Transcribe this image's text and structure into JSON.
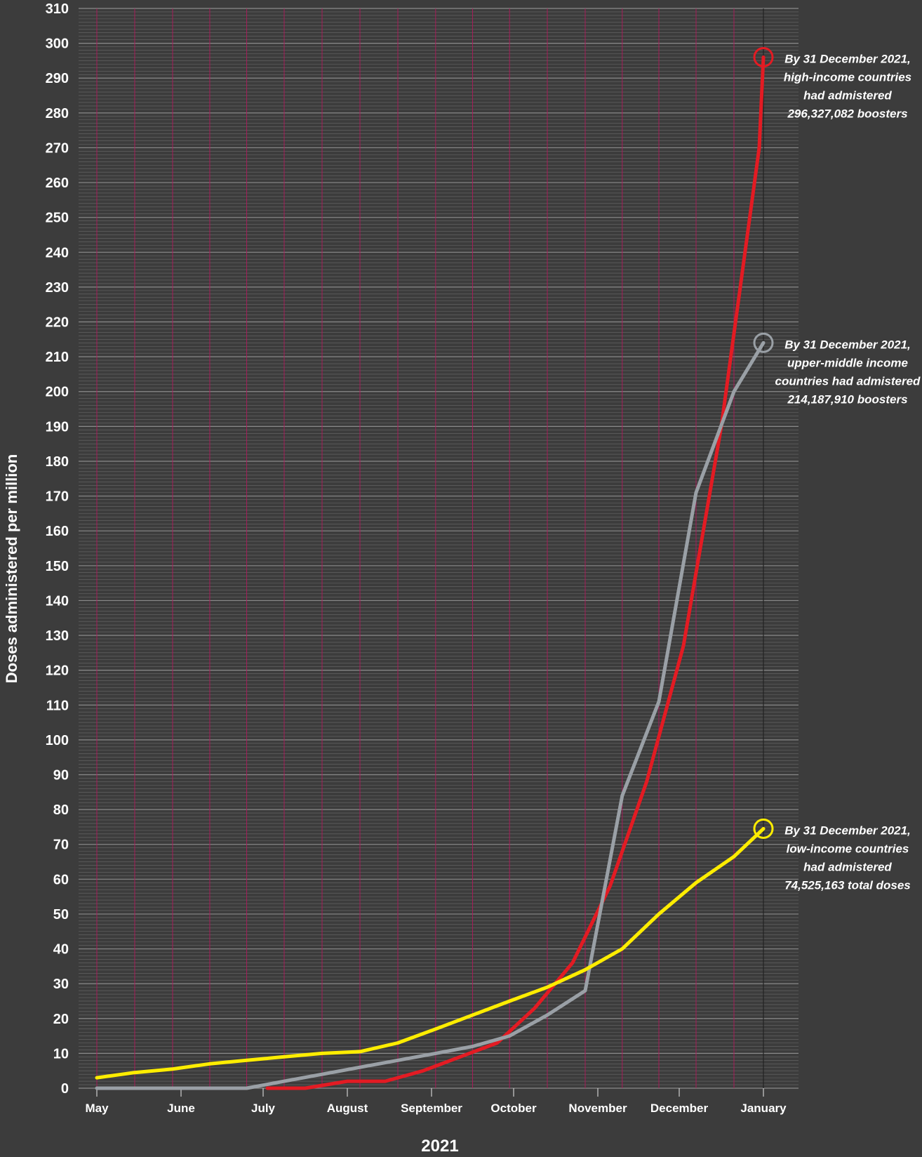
{
  "chart_data": {
    "type": "line",
    "xlabel": "2021",
    "ylabel": "Doses administered per million",
    "ylim": [
      0,
      310
    ],
    "y_ticks": [
      0,
      10,
      20,
      30,
      40,
      50,
      60,
      70,
      80,
      90,
      100,
      110,
      120,
      130,
      140,
      150,
      160,
      170,
      180,
      190,
      200,
      210,
      220,
      230,
      240,
      250,
      260,
      270,
      280,
      290,
      300,
      310
    ],
    "x_month_labels": [
      "May",
      "June",
      "July",
      "August",
      "September",
      "October",
      "November",
      "December",
      "January"
    ],
    "grid": true,
    "series": [
      {
        "color": "#e31b23",
        "points": [
          [
            2.05,
            0
          ],
          [
            2.5,
            0
          ],
          [
            3.0,
            2
          ],
          [
            3.45,
            2
          ],
          [
            3.9,
            5
          ],
          [
            4.35,
            9
          ],
          [
            4.8,
            13
          ],
          [
            5.25,
            23
          ],
          [
            5.7,
            36
          ],
          [
            6.15,
            58
          ],
          [
            6.6,
            88
          ],
          [
            7.05,
            127
          ],
          [
            7.5,
            190
          ],
          [
            7.95,
            270
          ],
          [
            8.15,
            296
          ]
        ]
      },
      {
        "color": "#9aa0a6",
        "points": [
          [
            0,
            0
          ],
          [
            0.45,
            0
          ],
          [
            0.9,
            0
          ],
          [
            1.35,
            0
          ],
          [
            1.8,
            0
          ],
          [
            2.25,
            2
          ],
          [
            2.7,
            4
          ],
          [
            3.15,
            6
          ],
          [
            3.6,
            8
          ],
          [
            4.05,
            10
          ],
          [
            4.5,
            12
          ],
          [
            4.95,
            15
          ],
          [
            5.4,
            21
          ],
          [
            5.85,
            28
          ],
          [
            6.3,
            84
          ],
          [
            6.75,
            111
          ],
          [
            7.2,
            171
          ],
          [
            7.65,
            200
          ],
          [
            8.15,
            214
          ]
        ]
      },
      {
        "color": "#ffed00",
        "points": [
          [
            0,
            3
          ],
          [
            0.45,
            4.5
          ],
          [
            0.9,
            5.5
          ],
          [
            1.35,
            7
          ],
          [
            1.8,
            8
          ],
          [
            2.25,
            9
          ],
          [
            2.7,
            10
          ],
          [
            3.15,
            10.5
          ],
          [
            3.6,
            13
          ],
          [
            4.05,
            17
          ],
          [
            4.5,
            21
          ],
          [
            4.95,
            25
          ],
          [
            5.4,
            29
          ],
          [
            5.85,
            34
          ],
          [
            6.3,
            40
          ],
          [
            6.75,
            50
          ],
          [
            7.2,
            59
          ],
          [
            7.65,
            66.5
          ],
          [
            8.15,
            74.5
          ]
        ]
      }
    ],
    "annotations": [
      {
        "color": "#e31b23",
        "y": 296,
        "lines": [
          "By 31 December 2021,",
          "high-income countries",
          "had admistered",
          "296,327,082 boosters"
        ]
      },
      {
        "color": "#9aa0a6",
        "y": 214,
        "lines": [
          "By 31 December 2021,",
          "upper-middle income",
          "countries had admistered",
          "214,187,910 boosters"
        ]
      },
      {
        "color": "#ffed00",
        "y": 74.5,
        "lines": [
          "By 31 December 2021,",
          "low-income countries",
          "had admistered",
          "74,525,163 total doses"
        ]
      }
    ],
    "colors": {
      "background": "#3c3c3c",
      "minor_grid": "#6a6a6a",
      "major_grid": "#8a8a8a",
      "vertical_grid": "#b0195c"
    }
  }
}
